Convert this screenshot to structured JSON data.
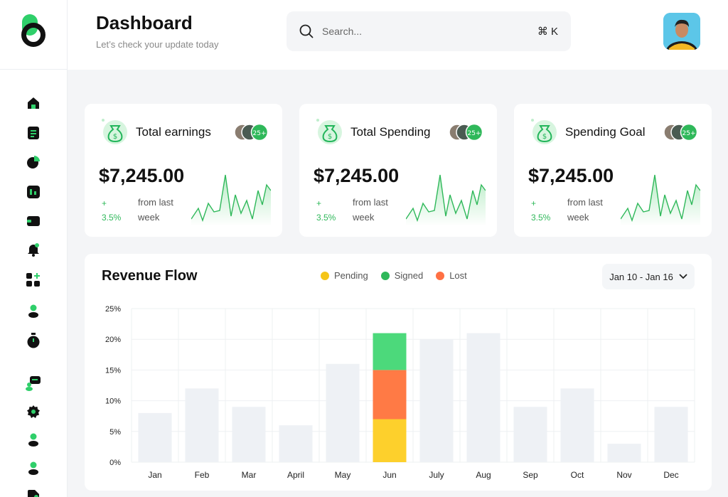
{
  "header": {
    "title": "Dashboard",
    "subtitle": "Let’s check your update today",
    "search_placeholder": "Search...",
    "search_shortcut": "⌘ K"
  },
  "sidebar": {
    "items": [
      {
        "name": "home-icon"
      },
      {
        "name": "document-icon"
      },
      {
        "name": "pie-chart-icon"
      },
      {
        "name": "bar-chart-icon"
      },
      {
        "name": "wallet-icon"
      },
      {
        "name": "bell-icon"
      },
      {
        "name": "apps-add-icon"
      },
      {
        "name": "user-icon"
      },
      {
        "name": "timer-icon"
      },
      {
        "name": "chat-user-icon"
      },
      {
        "name": "settings-icon"
      },
      {
        "name": "user-icon"
      },
      {
        "name": "user-icon"
      },
      {
        "name": "file-icon"
      }
    ]
  },
  "cards": [
    {
      "title": "Total earnings",
      "value": "$7,245.00",
      "change_sign": "+",
      "change": "3.5%",
      "period": "from last week",
      "avatar_badge": "25+"
    },
    {
      "title": "Total Spending",
      "value": "$7,245.00",
      "change_sign": "+",
      "change": "3.5%",
      "period": "from last week",
      "avatar_badge": "25+"
    },
    {
      "title": "Spending Goal",
      "value": "$7,245.00",
      "change_sign": "+",
      "change": "3.5%",
      "period": "from last week",
      "avatar_badge": "25+"
    }
  ],
  "revenue": {
    "title": "Revenue Flow",
    "legend": [
      {
        "label": "Pending",
        "color": "#f5c518"
      },
      {
        "label": "Signed",
        "color": "#2fb85a"
      },
      {
        "label": "Lost",
        "color": "#ff7043"
      }
    ],
    "date_range": "Jan 10 - Jan 16"
  },
  "chart_data": {
    "type": "bar",
    "title": "Revenue Flow",
    "categories": [
      "Jan",
      "Feb",
      "Mar",
      "April",
      "May",
      "Jun",
      "July",
      "Aug",
      "Sep",
      "Oct",
      "Nov",
      "Dec"
    ],
    "values": [
      8,
      12,
      9,
      6,
      16,
      21,
      20,
      21,
      9,
      12,
      3,
      9
    ],
    "highlight": {
      "category": "Jun",
      "stack": [
        {
          "name": "Pending",
          "value": 7,
          "color": "#fdd02c"
        },
        {
          "name": "Lost",
          "value": 8,
          "color": "#ff7a45"
        },
        {
          "name": "Signed",
          "value": 6,
          "color": "#4cd97b"
        }
      ]
    },
    "yticks": [
      "0%",
      "5%",
      "10%",
      "15%",
      "20%",
      "25%"
    ],
    "ylim": [
      0,
      25
    ],
    "grid": true
  }
}
